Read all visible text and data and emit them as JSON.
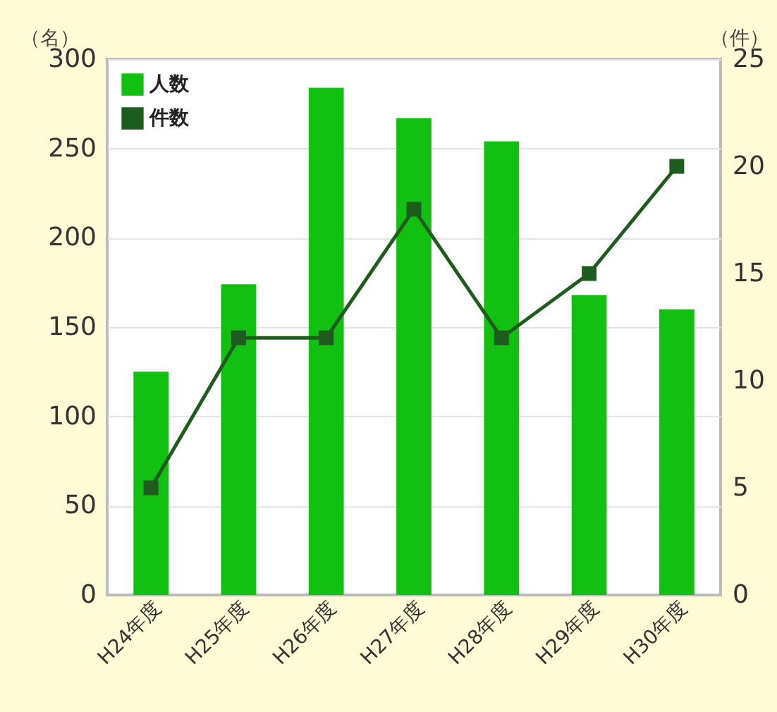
{
  "chart_data": {
    "type": "bar",
    "ylabel": "（名）",
    "y2label": "（件）",
    "categories": [
      "H24年度",
      "H25年度",
      "H26年度",
      "H27年度",
      "H28年度",
      "H29年度",
      "H30年度"
    ],
    "series": [
      {
        "name": "人数",
        "color": "#11c011",
        "values": [
          125,
          174,
          284,
          267,
          254,
          168,
          160
        ]
      },
      {
        "name": "件数",
        "type": "line",
        "axis": "y2",
        "color": "#1e5c1e",
        "marker": "square",
        "values": [
          5,
          12,
          12,
          18,
          12,
          15,
          20
        ]
      }
    ],
    "ylim": [
      0,
      300
    ],
    "yticks": [
      0,
      50,
      100,
      150,
      200,
      250,
      300
    ],
    "y2lim": [
      0,
      25
    ],
    "y2ticks": [
      0,
      5,
      10,
      15,
      20,
      25
    ],
    "grid": "y",
    "legend": "top left"
  }
}
